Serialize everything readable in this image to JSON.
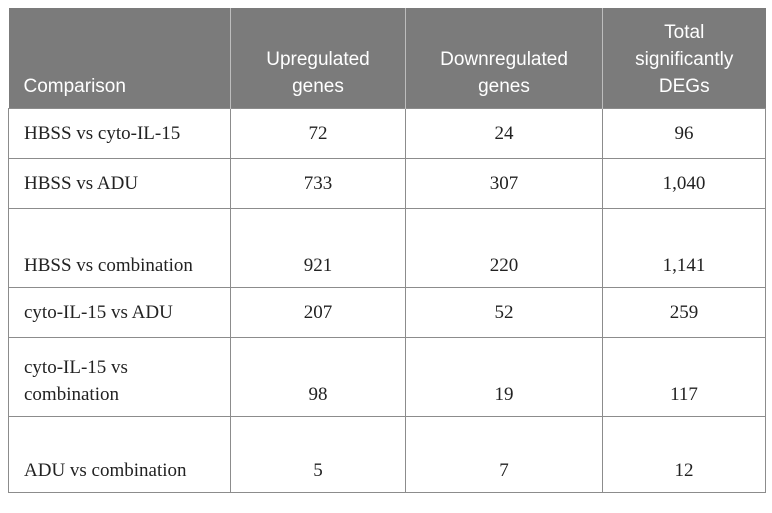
{
  "table": {
    "headers": [
      "Comparison",
      "Upregulated genes",
      "Downregulated genes",
      "Total significantly DEGs"
    ],
    "rows": [
      [
        "HBSS vs cyto-IL-15",
        "72",
        "24",
        "96"
      ],
      [
        "HBSS vs ADU",
        "733",
        "307",
        "1,040"
      ],
      [
        "HBSS vs combination",
        "921",
        "220",
        "1,141"
      ],
      [
        "cyto-IL-15 vs ADU",
        "207",
        "52",
        "259"
      ],
      [
        "cyto-IL-15 vs combination",
        "98",
        "19",
        "117"
      ],
      [
        "ADU vs combination",
        "5",
        "7",
        "12"
      ]
    ]
  }
}
